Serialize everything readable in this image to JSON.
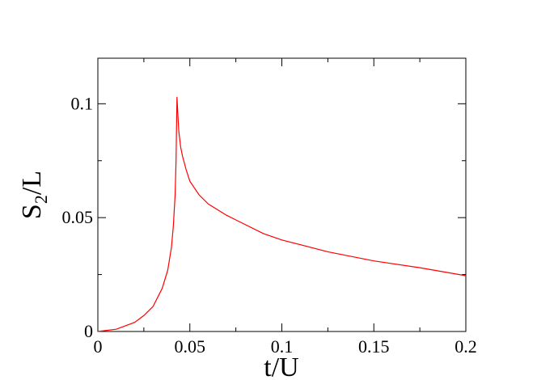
{
  "chart_data": {
    "type": "line",
    "xlabel": "t/U",
    "ylabel": [
      "S",
      "2",
      "/L"
    ],
    "x": [
      0,
      0.01,
      0.02,
      0.025,
      0.03,
      0.035,
      0.038,
      0.04,
      0.041,
      0.042,
      0.0425,
      0.043,
      0.0435,
      0.044,
      0.045,
      0.046,
      0.048,
      0.05,
      0.055,
      0.06,
      0.07,
      0.075,
      0.09,
      0.1,
      0.125,
      0.15,
      0.175,
      0.2
    ],
    "series": [
      {
        "name": "S2/L",
        "color": "#ff0000",
        "values": [
          0,
          0.001,
          0.004,
          0.007,
          0.011,
          0.019,
          0.027,
          0.037,
          0.046,
          0.06,
          0.075,
          0.103,
          0.095,
          0.088,
          0.081,
          0.077,
          0.071,
          0.066,
          0.06,
          0.056,
          0.051,
          0.049,
          0.043,
          0.0402,
          0.035,
          0.031,
          0.028,
          0.0245
        ]
      }
    ],
    "xlim": [
      0,
      0.2
    ],
    "ylim": [
      0,
      0.12
    ],
    "xticks": [
      0,
      0.05,
      0.1,
      0.15,
      0.2
    ],
    "yticks": [
      0,
      0.05,
      0.1
    ],
    "xminorticks": [
      0.025,
      0.075,
      0.125,
      0.175
    ],
    "yminorticks": [
      0.025,
      0.075
    ]
  }
}
